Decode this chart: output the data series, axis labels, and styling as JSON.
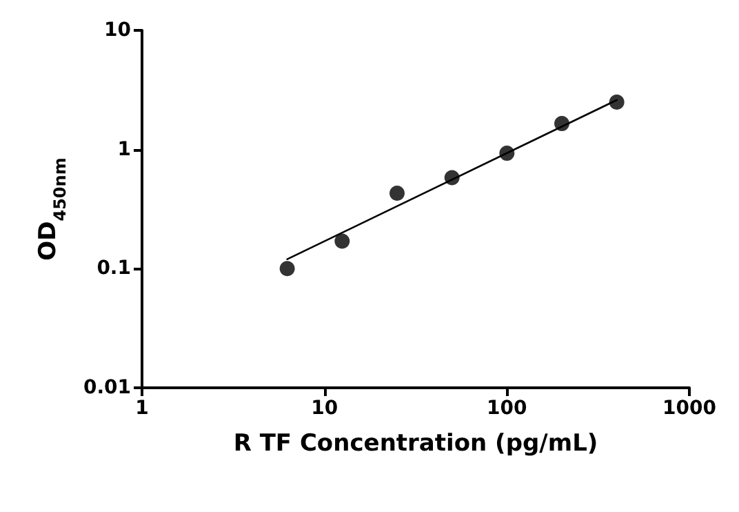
{
  "chart_data": {
    "type": "scatter",
    "xlabel": "R TF Concentration (pg/mL)",
    "ylabel": "OD$_{450nm}$",
    "x": [
      6.25,
      12.5,
      25,
      50,
      100,
      200,
      400
    ],
    "series": [
      {
        "color": "#000000",
        "marker": "circle",
        "values": [
          0.1,
          0.17,
          0.43,
          0.58,
          0.93,
          1.65,
          2.5
        ]
      },
      {
        "type": "line",
        "color": "#000000",
        "line_style": "solid",
        "marker": "none",
        "x": [
          6.25,
          400
        ],
        "values": [
          0.12,
          2.6
        ]
      }
    ],
    "xlim": [
      1,
      1000
    ],
    "ylim": [
      0.01,
      10
    ],
    "xticks": [
      1,
      10,
      100,
      1000
    ],
    "yticks": [
      0.01,
      0.1,
      1,
      10
    ],
    "log": "xy",
    "grid": false
  }
}
